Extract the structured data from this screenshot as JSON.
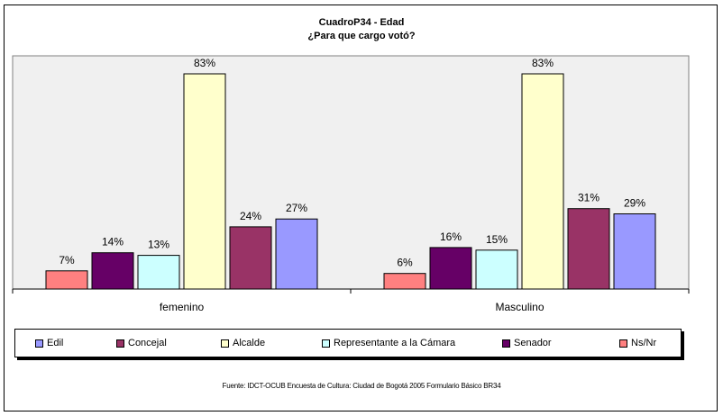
{
  "chart_data": {
    "type": "bar",
    "title": "CuadroP34 - Edad",
    "subtitle": "¿Para que cargo votó?",
    "categories": [
      "femenino",
      "Masculino"
    ],
    "series": [
      {
        "name": "Ns/Nr",
        "color": "#ff8080",
        "values": [
          7,
          6
        ]
      },
      {
        "name": "Senador",
        "color": "#660066",
        "values": [
          14,
          16
        ]
      },
      {
        "name": "Representante a la Cámara",
        "color": "#ccffff",
        "values": [
          13,
          15
        ]
      },
      {
        "name": "Alcalde",
        "color": "#ffffcc",
        "values": [
          83,
          83
        ]
      },
      {
        "name": "Concejal",
        "color": "#993366",
        "values": [
          24,
          31
        ]
      },
      {
        "name": "Edil",
        "color": "#9999ff",
        "values": [
          27,
          29
        ]
      }
    ],
    "value_suffix": "%",
    "ylim": [
      0,
      100
    ],
    "grid": false,
    "legend_position": "bottom",
    "legend_order": [
      "Edil",
      "Concejal",
      "Alcalde",
      "Representante a la Cámara",
      "Senador",
      "Ns/Nr"
    ],
    "plot_background": "#f0f0f0"
  },
  "footer": {
    "source": "Fuente: IDCT-OCUB Encuesta de Cultura: Ciudad de Bogotá 2005 Formulario Básico BR34"
  }
}
